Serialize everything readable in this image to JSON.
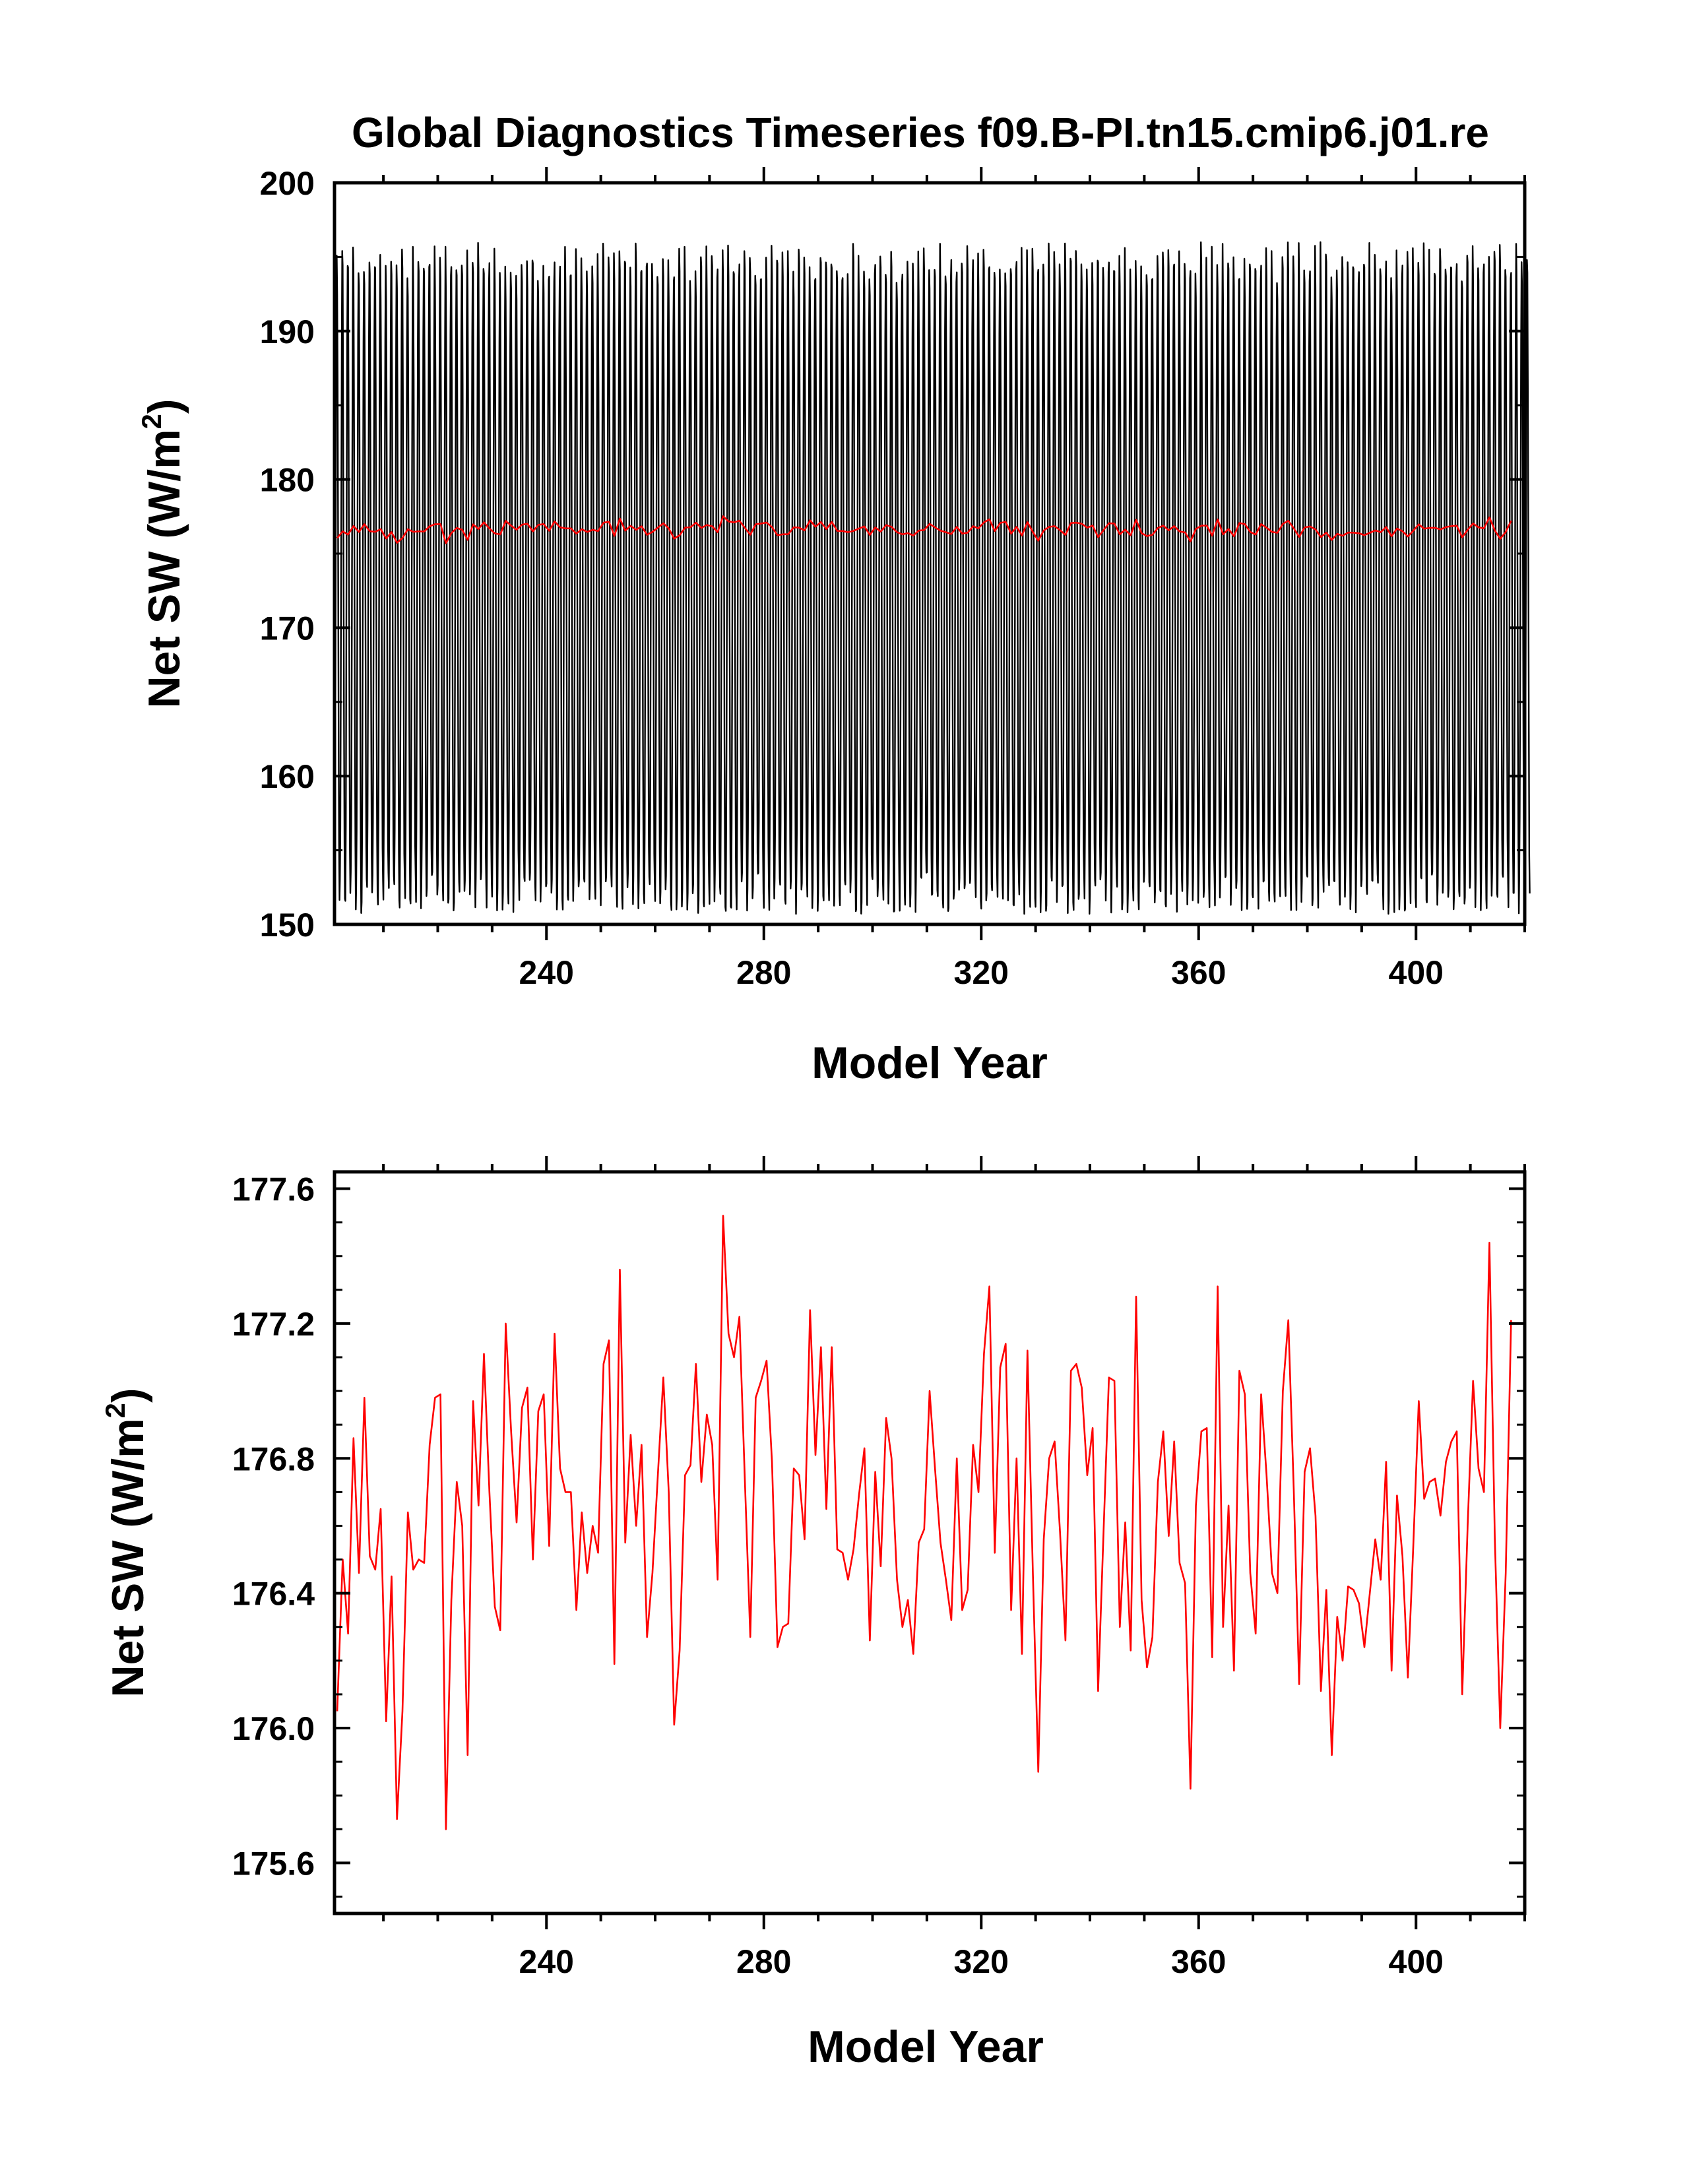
{
  "title": "Global Diagnostics Timeseries f09.B-PI.tn15.cmip6.j01.re",
  "chart_data": [
    {
      "type": "line",
      "xlabel": "Model Year",
      "ylabel": "Net SW (W/m",
      "ylabel_superscript": "2",
      "ylabel_close": ")",
      "xlim": [
        201,
        420
      ],
      "ylim": [
        150,
        200
      ],
      "x_ticks": [
        240,
        280,
        320,
        360,
        400
      ],
      "y_ticks": [
        150,
        160,
        170,
        180,
        190,
        200
      ],
      "y_tick_labels": [
        "150",
        "160",
        "170",
        "180",
        "190",
        "200"
      ],
      "series": [
        {
          "kind": "monthly",
          "color": "#000000",
          "start_year": 201,
          "end_year": 420,
          "monthly_climatology": [
            152.2,
            156.8,
            166.5,
            178.8,
            189.5,
            194.6,
            193.4,
            186.2,
            174.6,
            163.4,
            155.2,
            152.1
          ]
        },
        {
          "kind": "annual_mean",
          "color": "#ff0000",
          "ref": "annual_values"
        }
      ]
    },
    {
      "type": "line",
      "xlabel": "Model Year",
      "ylabel": "Net SW (W/m",
      "ylabel_superscript": "2",
      "ylabel_close": ")",
      "xlim": [
        201,
        420
      ],
      "ylim": [
        175.45,
        177.65
      ],
      "x_ticks": [
        240,
        280,
        320,
        360,
        400
      ],
      "y_ticks": [
        175.6,
        176.0,
        176.4,
        176.8,
        177.2,
        177.6
      ],
      "y_tick_labels": [
        "175.6",
        "176.0",
        "176.4",
        "176.8",
        "177.2",
        "177.6"
      ],
      "series": [
        {
          "kind": "annual_mean",
          "color": "#ff0000",
          "ref": "annual_values"
        }
      ]
    }
  ],
  "annual_values": [
    176.05,
    176.5,
    176.28,
    176.86,
    176.46,
    176.98,
    176.51,
    176.47,
    176.65,
    176.02,
    176.45,
    175.73,
    176.05,
    176.64,
    176.47,
    176.5,
    176.49,
    176.84,
    176.98,
    176.99,
    175.7,
    176.38,
    176.73,
    176.6,
    175.92,
    176.97,
    176.66,
    177.11,
    176.7,
    176.36,
    176.29,
    177.2,
    176.88,
    176.61,
    176.95,
    177.01,
    176.5,
    176.94,
    176.99,
    176.54,
    177.17,
    176.77,
    176.7,
    176.7,
    176.35,
    176.64,
    176.46,
    176.6,
    176.52,
    177.08,
    177.15,
    176.19,
    177.36,
    176.55,
    176.87,
    176.6,
    176.84,
    176.27,
    176.46,
    176.75,
    177.04,
    176.7,
    176.01,
    176.23,
    176.75,
    176.78,
    177.08,
    176.73,
    176.93,
    176.84,
    176.44,
    177.52,
    177.17,
    177.1,
    177.22,
    176.74,
    176.27,
    176.98,
    177.03,
    177.09,
    176.79,
    176.24,
    176.3,
    176.31,
    176.77,
    176.75,
    176.56,
    177.24,
    176.81,
    177.13,
    176.65,
    177.13,
    176.53,
    176.52,
    176.44,
    176.53,
    176.69,
    176.83,
    176.26,
    176.76,
    176.48,
    176.92,
    176.8,
    176.44,
    176.3,
    176.38,
    176.22,
    176.55,
    176.59,
    177.0,
    176.77,
    176.55,
    176.44,
    176.32,
    176.8,
    176.35,
    176.41,
    176.84,
    176.7,
    177.11,
    177.31,
    176.52,
    177.07,
    177.14,
    176.35,
    176.8,
    176.22,
    177.12,
    176.46,
    175.87,
    176.56,
    176.8,
    176.85,
    176.58,
    176.26,
    177.06,
    177.08,
    177.01,
    176.75,
    176.89,
    176.11,
    176.58,
    177.04,
    177.03,
    176.3,
    176.61,
    176.23,
    177.28,
    176.38,
    176.18,
    176.27,
    176.73,
    176.88,
    176.57,
    176.85,
    176.49,
    176.43,
    175.82,
    176.66,
    176.88,
    176.89,
    176.21,
    177.31,
    176.3,
    176.66,
    176.17,
    177.06,
    176.99,
    176.46,
    176.28,
    176.99,
    176.75,
    176.46,
    176.4,
    177.0,
    177.21,
    176.71,
    176.13,
    176.76,
    176.83,
    176.63,
    176.11,
    176.41,
    175.92,
    176.33,
    176.2,
    176.42,
    176.41,
    176.37,
    176.24,
    176.4,
    176.56,
    176.44,
    176.79,
    176.17,
    176.69,
    176.51,
    176.15,
    176.54,
    176.97,
    176.68,
    176.73,
    176.74,
    176.63,
    176.79,
    176.85,
    176.88,
    176.1,
    176.6,
    177.03,
    176.77,
    176.7,
    177.44,
    176.56,
    176.0,
    176.46,
    177.21
  ]
}
